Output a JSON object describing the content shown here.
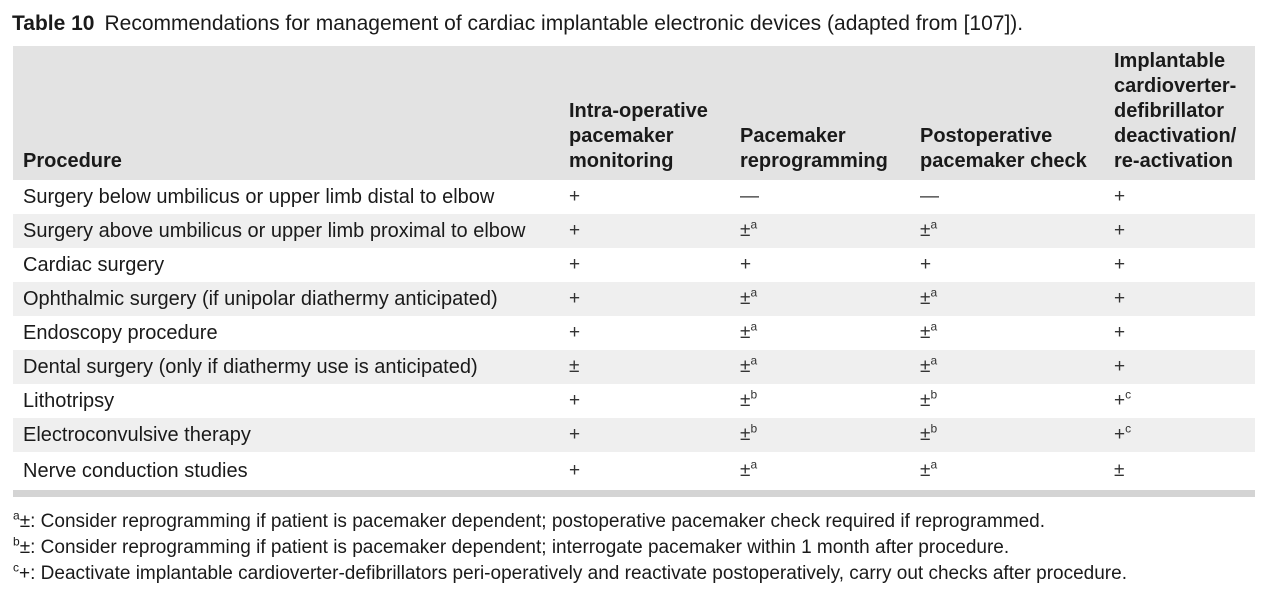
{
  "caption": {
    "label": "Table 10",
    "text": "Recommendations for management of cardiac implantable electronic devices (adapted from [107])."
  },
  "table": {
    "headers": [
      "Procedure",
      "Intra-operative pacemaker monitoring",
      "Pacemaker reprogramming",
      "Postoperative pacemaker check",
      "Implantable cardioverter-defibrillator deactivation/ re-activation"
    ],
    "rows": [
      {
        "procedure": "Surgery below umbilicus or upper limb distal to elbow",
        "cells": [
          {
            "v": "+",
            "n": ""
          },
          {
            "v": "—",
            "n": ""
          },
          {
            "v": "—",
            "n": ""
          },
          {
            "v": "+",
            "n": ""
          }
        ]
      },
      {
        "procedure": "Surgery above umbilicus or upper limb proximal to elbow",
        "cells": [
          {
            "v": "+",
            "n": ""
          },
          {
            "v": "±",
            "n": "a"
          },
          {
            "v": "±",
            "n": "a"
          },
          {
            "v": "+",
            "n": ""
          }
        ]
      },
      {
        "procedure": "Cardiac surgery",
        "cells": [
          {
            "v": "+",
            "n": ""
          },
          {
            "v": "+",
            "n": ""
          },
          {
            "v": "+",
            "n": ""
          },
          {
            "v": "+",
            "n": ""
          }
        ]
      },
      {
        "procedure": "Ophthalmic surgery (if unipolar diathermy anticipated)",
        "cells": [
          {
            "v": "+",
            "n": ""
          },
          {
            "v": "±",
            "n": "a"
          },
          {
            "v": "±",
            "n": "a"
          },
          {
            "v": "+",
            "n": ""
          }
        ]
      },
      {
        "procedure": "Endoscopy procedure",
        "cells": [
          {
            "v": "+",
            "n": ""
          },
          {
            "v": "±",
            "n": "a"
          },
          {
            "v": "±",
            "n": "a"
          },
          {
            "v": "+",
            "n": ""
          }
        ]
      },
      {
        "procedure": "Dental surgery (only if diathermy use is anticipated)",
        "cells": [
          {
            "v": "±",
            "n": ""
          },
          {
            "v": "±",
            "n": "a"
          },
          {
            "v": "±",
            "n": "a"
          },
          {
            "v": "+",
            "n": ""
          }
        ]
      },
      {
        "procedure": "Lithotripsy",
        "cells": [
          {
            "v": "+",
            "n": ""
          },
          {
            "v": "±",
            "n": "b"
          },
          {
            "v": "±",
            "n": "b"
          },
          {
            "v": "+",
            "n": "c"
          }
        ]
      },
      {
        "procedure": "Electroconvulsive therapy",
        "cells": [
          {
            "v": "+",
            "n": ""
          },
          {
            "v": "±",
            "n": "b"
          },
          {
            "v": "±",
            "n": "b"
          },
          {
            "v": "+",
            "n": "c"
          }
        ]
      },
      {
        "procedure": "Nerve conduction studies",
        "cells": [
          {
            "v": "+",
            "n": ""
          },
          {
            "v": "±",
            "n": "a"
          },
          {
            "v": "±",
            "n": "a"
          },
          {
            "v": "±",
            "n": ""
          }
        ]
      }
    ]
  },
  "footnotes": [
    {
      "mark": "a",
      "text": "±: Consider reprogramming if patient is pacemaker dependent; postoperative pacemaker check required if reprogrammed."
    },
    {
      "mark": "b",
      "text": "±: Consider reprogramming if patient is pacemaker dependent; interrogate pacemaker within 1  month after procedure."
    },
    {
      "mark": "c",
      "text": "+: Deactivate implantable cardioverter-defibrillators peri-operatively and reactivate postoperatively, carry out checks after procedure."
    }
  ]
}
